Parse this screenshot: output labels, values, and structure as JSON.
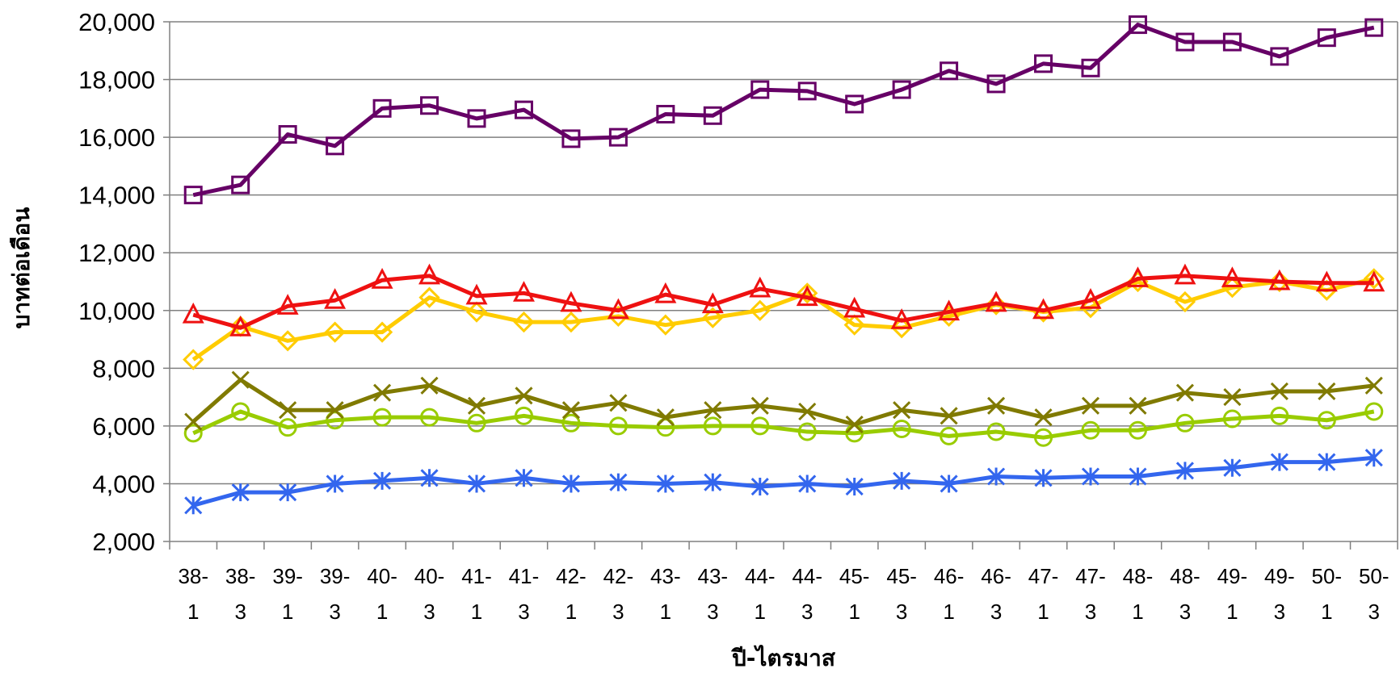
{
  "chart_data": {
    "type": "line",
    "title": "",
    "xlabel": "ปี-ไตรมาส",
    "ylabel": "บาทต่อเดือน",
    "ylim": [
      2000,
      20000
    ],
    "y_ticks": [
      2000,
      4000,
      6000,
      8000,
      10000,
      12000,
      14000,
      16000,
      18000,
      20000
    ],
    "y_tick_labels": [
      "2,000",
      "4,000",
      "6,000",
      "8,000",
      "10,000",
      "12,000",
      "14,000",
      "16,000",
      "18,000",
      "20,000"
    ],
    "grid": "horizontal",
    "legend": "none",
    "categories": [
      {
        "year": "38-",
        "q": "1"
      },
      {
        "year": "38-",
        "q": "3"
      },
      {
        "year": "39-",
        "q": "1"
      },
      {
        "year": "39-",
        "q": "3"
      },
      {
        "year": "40-",
        "q": "1"
      },
      {
        "year": "40-",
        "q": "3"
      },
      {
        "year": "41-",
        "q": "1"
      },
      {
        "year": "41-",
        "q": "3"
      },
      {
        "year": "42-",
        "q": "1"
      },
      {
        "year": "42-",
        "q": "3"
      },
      {
        "year": "43-",
        "q": "1"
      },
      {
        "year": "43-",
        "q": "3"
      },
      {
        "year": "44-",
        "q": "1"
      },
      {
        "year": "44-",
        "q": "3"
      },
      {
        "year": "45-",
        "q": "1"
      },
      {
        "year": "45-",
        "q": "3"
      },
      {
        "year": "46-",
        "q": "1"
      },
      {
        "year": "46-",
        "q": "3"
      },
      {
        "year": "47-",
        "q": "1"
      },
      {
        "year": "47-",
        "q": "3"
      },
      {
        "year": "48-",
        "q": "1"
      },
      {
        "year": "48-",
        "q": "3"
      },
      {
        "year": "49-",
        "q": "1"
      },
      {
        "year": "49-",
        "q": "3"
      },
      {
        "year": "50-",
        "q": "1"
      },
      {
        "year": "50-",
        "q": "3"
      }
    ],
    "series": [
      {
        "color": "#660066",
        "marker": "square",
        "values": [
          14000,
          14350,
          16100,
          15700,
          17000,
          17100,
          16650,
          16950,
          15950,
          16000,
          16800,
          16750,
          17650,
          17600,
          17150,
          17650,
          18300,
          17850,
          18550,
          18400,
          19900,
          19300,
          19300,
          18800,
          19450,
          19800
        ]
      },
      {
        "color": "#ee1111",
        "marker": "triangle",
        "values": [
          9850,
          9400,
          10150,
          10350,
          11050,
          11200,
          10500,
          10600,
          10250,
          10000,
          10550,
          10200,
          10750,
          10450,
          10050,
          9650,
          9950,
          10250,
          10000,
          10350,
          11100,
          11200,
          11100,
          11000,
          10950,
          10950
        ]
      },
      {
        "color": "#ffcc00",
        "marker": "diamond",
        "values": [
          8300,
          9450,
          8950,
          9250,
          9250,
          10450,
          9950,
          9600,
          9600,
          9800,
          9500,
          9750,
          10000,
          10600,
          9500,
          9400,
          9800,
          10200,
          9950,
          10100,
          11000,
          10300,
          10800,
          11000,
          10700,
          11100
        ]
      },
      {
        "color": "#807a00",
        "marker": "x",
        "values": [
          6150,
          7600,
          6550,
          6550,
          7150,
          7400,
          6700,
          7050,
          6550,
          6800,
          6300,
          6550,
          6700,
          6500,
          6050,
          6550,
          6350,
          6700,
          6300,
          6700,
          6700,
          7150,
          7000,
          7200,
          7200,
          7400
        ]
      },
      {
        "color": "#99cc00",
        "marker": "circle",
        "values": [
          5750,
          6500,
          5950,
          6200,
          6300,
          6300,
          6100,
          6350,
          6100,
          6000,
          5950,
          6000,
          6000,
          5800,
          5750,
          5900,
          5650,
          5800,
          5600,
          5850,
          5850,
          6100,
          6250,
          6350,
          6200,
          6500
        ]
      },
      {
        "color": "#3366ee",
        "marker": "asterisk",
        "values": [
          3250,
          3700,
          3700,
          4000,
          4100,
          4200,
          4000,
          4200,
          4000,
          4050,
          4000,
          4050,
          3900,
          4000,
          3900,
          4100,
          4000,
          4250,
          4200,
          4250,
          4250,
          4450,
          4550,
          4750,
          4750,
          4900
        ]
      }
    ]
  }
}
